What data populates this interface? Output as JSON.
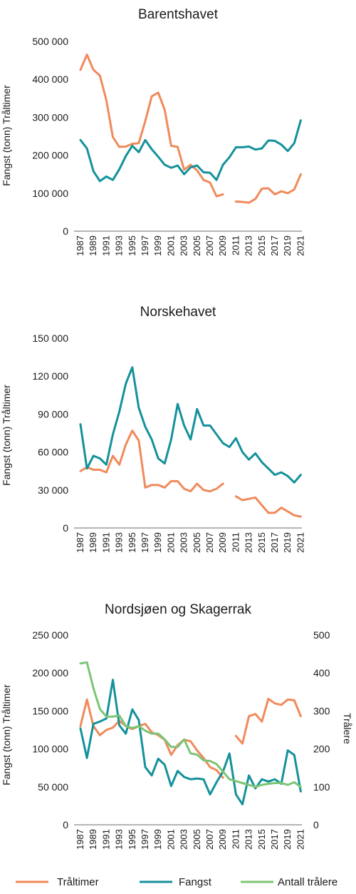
{
  "legend": [
    {
      "label": "Tråltimer",
      "color": "#f08a5b"
    },
    {
      "label": "Fangst",
      "color": "#14919b"
    },
    {
      "label": "Antall trålere",
      "color": "#7cc576"
    }
  ],
  "chart_data": [
    {
      "type": "line",
      "title": "Barentshavet",
      "ylabel": "Fangst (tonn) Tråltimer",
      "ylim": [
        0,
        500000
      ],
      "yticks": [
        0,
        100000,
        200000,
        300000,
        400000,
        500000
      ],
      "ytick_labels": [
        "0",
        "100 000",
        "200 000",
        "300 000",
        "400 000",
        "500 000"
      ],
      "xticks": [
        "1987",
        "1989",
        "1991",
        "1993",
        "1995",
        "1997",
        "1999",
        "2001",
        "2003",
        "2005",
        "2007",
        "2009",
        "2011",
        "2013",
        "2015",
        "2017",
        "2019",
        "2021"
      ],
      "x": [
        1987,
        1988,
        1989,
        1990,
        1991,
        1992,
        1993,
        1994,
        1995,
        1996,
        1997,
        1998,
        1999,
        2000,
        2001,
        2002,
        2003,
        2004,
        2005,
        2006,
        2007,
        2008,
        2009,
        2010,
        2011,
        2012,
        2013,
        2014,
        2015,
        2016,
        2017,
        2018,
        2019,
        2020,
        2021
      ],
      "series": [
        {
          "name": "Tråltimer",
          "color": "#f08a5b",
          "axis": "left",
          "values": [
            425000,
            465000,
            425000,
            410000,
            345000,
            248000,
            222000,
            223000,
            230000,
            232000,
            290000,
            355000,
            365000,
            320000,
            225000,
            222000,
            162000,
            175000,
            160000,
            135000,
            128000,
            92000,
            97000,
            null,
            78000,
            77000,
            75000,
            85000,
            112000,
            113000,
            97000,
            105000,
            100000,
            110000,
            150000
          ]
        },
        {
          "name": "Fangst",
          "color": "#14919b",
          "axis": "left",
          "values": [
            240000,
            218000,
            158000,
            132000,
            144000,
            135000,
            163000,
            198000,
            225000,
            208000,
            240000,
            216000,
            196000,
            175000,
            167000,
            173000,
            150000,
            168000,
            173000,
            155000,
            154000,
            135000,
            175000,
            195000,
            221000,
            221000,
            223000,
            215000,
            218000,
            239000,
            238000,
            228000,
            211000,
            232000,
            292000
          ]
        }
      ]
    },
    {
      "type": "line",
      "title": "Norskehavet",
      "ylabel": "Fangst (tonn) Tråltimer",
      "ylim": [
        0,
        150000
      ],
      "yticks": [
        0,
        30000,
        60000,
        90000,
        120000,
        150000
      ],
      "ytick_labels": [
        "0",
        "30 000",
        "60 000",
        "90 000",
        "120 000",
        "150 000"
      ],
      "xticks": [
        "1987",
        "1989",
        "1991",
        "1993",
        "1995",
        "1997",
        "1999",
        "2001",
        "2003",
        "2005",
        "2007",
        "2009",
        "2011",
        "2013",
        "2015",
        "2017",
        "2019",
        "2021"
      ],
      "x": [
        1987,
        1988,
        1989,
        1990,
        1991,
        1992,
        1993,
        1994,
        1995,
        1996,
        1997,
        1998,
        1999,
        2000,
        2001,
        2002,
        2003,
        2004,
        2005,
        2006,
        2007,
        2008,
        2009,
        2010,
        2011,
        2012,
        2013,
        2014,
        2015,
        2016,
        2017,
        2018,
        2019,
        2020,
        2021
      ],
      "series": [
        {
          "name": "Tråltimer",
          "color": "#f08a5b",
          "axis": "left",
          "values": [
            45000,
            48000,
            46000,
            46000,
            44000,
            57000,
            50000,
            66000,
            77000,
            69000,
            32000,
            34000,
            34000,
            32000,
            37000,
            37000,
            31000,
            29000,
            35000,
            30000,
            29000,
            31000,
            35000,
            null,
            25000,
            22000,
            23000,
            24000,
            18000,
            12000,
            12000,
            16000,
            13000,
            10000,
            9000
          ]
        },
        {
          "name": "Fangst",
          "color": "#14919b",
          "axis": "left",
          "values": [
            82000,
            47000,
            57000,
            55000,
            50000,
            74000,
            92000,
            114000,
            127000,
            95000,
            80000,
            70000,
            55000,
            51000,
            70000,
            98000,
            81000,
            70000,
            94000,
            81000,
            81000,
            74000,
            67000,
            64000,
            71000,
            60000,
            54000,
            59000,
            52000,
            47000,
            42000,
            44000,
            41000,
            36000,
            42000
          ]
        }
      ]
    },
    {
      "type": "line",
      "title": "Nordsjøen og Skagerrak",
      "ylabel": "Fangst (tonn) Tråltimer",
      "y2label": "Trålere",
      "ylim": [
        0,
        250000
      ],
      "y2lim": [
        0,
        500
      ],
      "yticks": [
        0,
        50000,
        100000,
        150000,
        200000,
        250000
      ],
      "ytick_labels": [
        "0",
        "50 000",
        "100 000",
        "150 000",
        "200 000",
        "250 000"
      ],
      "y2ticks": [
        0,
        100,
        200,
        300,
        400,
        500
      ],
      "y2tick_labels": [
        "0",
        "100",
        "200",
        "300",
        "400",
        "500"
      ],
      "xticks": [
        "1987",
        "1989",
        "1991",
        "1993",
        "1995",
        "1997",
        "1999",
        "2001",
        "2003",
        "2005",
        "2007",
        "2009",
        "2011",
        "2013",
        "2015",
        "2017",
        "2019",
        "2021"
      ],
      "x": [
        1987,
        1988,
        1989,
        1990,
        1991,
        1992,
        1993,
        1994,
        1995,
        1996,
        1997,
        1998,
        1999,
        2000,
        2001,
        2002,
        2003,
        2004,
        2005,
        2006,
        2007,
        2008,
        2009,
        2010,
        2011,
        2012,
        2013,
        2014,
        2015,
        2016,
        2017,
        2018,
        2019,
        2020,
        2021
      ],
      "series": [
        {
          "name": "Tråltimer",
          "color": "#f08a5b",
          "axis": "left",
          "values": [
            130000,
            165000,
            130000,
            118000,
            125000,
            128000,
            137000,
            130000,
            126000,
            130000,
            133000,
            122000,
            118000,
            112000,
            92000,
            105000,
            112000,
            110000,
            98000,
            88000,
            76000,
            72000,
            62000,
            null,
            117000,
            107000,
            143000,
            146000,
            136000,
            166000,
            160000,
            158000,
            165000,
            164000,
            143000
          ]
        },
        {
          "name": "Fangst",
          "color": "#14919b",
          "axis": "left",
          "values": [
            127000,
            88000,
            133000,
            136000,
            140000,
            191000,
            131000,
            120000,
            152000,
            138000,
            76000,
            65000,
            87000,
            79000,
            51000,
            71000,
            63000,
            60000,
            61000,
            60000,
            40000,
            56000,
            70000,
            94000,
            40000,
            27000,
            65000,
            48000,
            60000,
            57000,
            60000,
            54000,
            98000,
            92000,
            44000
          ]
        },
        {
          "name": "Antall trålere",
          "color": "#7cc576",
          "axis": "right",
          "values": [
            425,
            428,
            360,
            305,
            285,
            285,
            288,
            260,
            255,
            260,
            248,
            240,
            240,
            225,
            205,
            205,
            225,
            188,
            185,
            170,
            168,
            160,
            140,
            120,
            115,
            110,
            105,
            100,
            105,
            108,
            110,
            110,
            105,
            112,
            100
          ]
        }
      ]
    }
  ]
}
